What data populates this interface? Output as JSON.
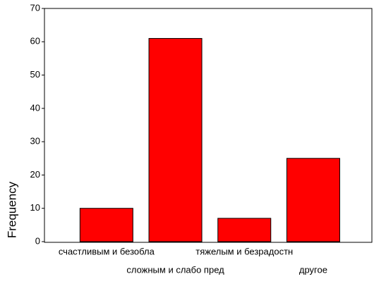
{
  "chart_data": {
    "type": "bar",
    "y_label": "Frequency",
    "categories": [
      "счастливым и безобла",
      "сложным и слабо пред",
      "тяжелым и безрадостн",
      "другое"
    ],
    "values": [
      10,
      61,
      7,
      25
    ],
    "color": "#ff0000",
    "ylim": [
      0,
      70
    ],
    "yticks": [
      0,
      10,
      20,
      30,
      40,
      50,
      60,
      70
    ]
  }
}
